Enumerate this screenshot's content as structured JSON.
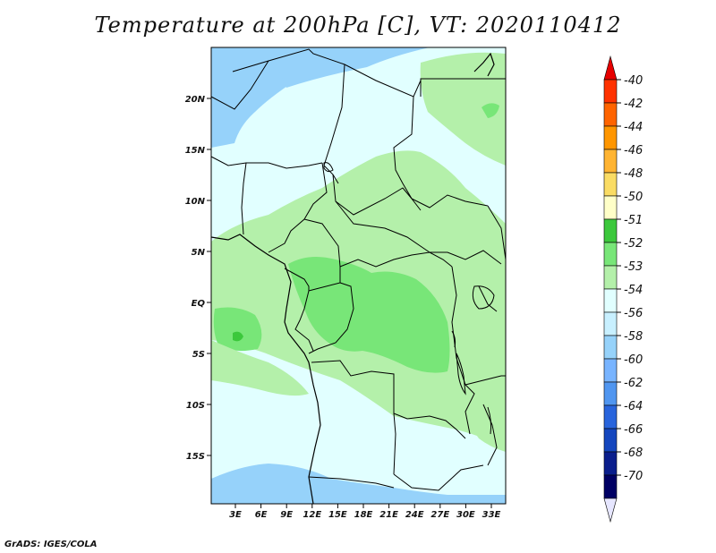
{
  "title": "Temperature at 200hPa [C], VT: 2020110412",
  "credit": "GrADS: IGES/COLA",
  "map": {
    "lat_ticks": [
      "20N",
      "15N",
      "10N",
      "5N",
      "EQ",
      "5S",
      "10S",
      "15S"
    ],
    "lon_ticks": [
      "3E",
      "6E",
      "9E",
      "12E",
      "15E",
      "18E",
      "21E",
      "24E",
      "27E",
      "30E",
      "33E"
    ],
    "field_colors": {
      "-51": "#ffffc8",
      "-52": "#3cc83c",
      "-53": "#78e678",
      "-54": "#b4f0aa",
      "-56": "#e1ffff",
      "-58": "#96d2fa",
      "-60": "#78b4ff"
    },
    "border_color": "#000000"
  },
  "colorbar": {
    "labels": [
      "-40",
      "-42",
      "-44",
      "-46",
      "-48",
      "-50",
      "-51",
      "-52",
      "-53",
      "-54",
      "-56",
      "-58",
      "-60",
      "-62",
      "-64",
      "-66",
      "-68",
      "-70"
    ],
    "colors": [
      "#e60000",
      "#ff3200",
      "#ff6400",
      "#ff9600",
      "#ffb432",
      "#fadc64",
      "#ffffc8",
      "#3cc83c",
      "#78e678",
      "#b4f0aa",
      "#e1ffff",
      "#c8f0ff",
      "#96d2fa",
      "#78b4ff",
      "#5096f0",
      "#2864dc",
      "#1446be",
      "#0a1e8c",
      "#000064",
      "#e6e6ff"
    ]
  }
}
